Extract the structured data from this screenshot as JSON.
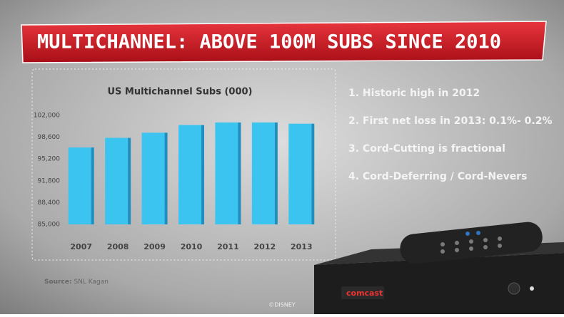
{
  "slide": {
    "heading": "MULTICHANNEL: ABOVE 100M SUBS SINCE 2010",
    "points": [
      "1.  Historic high in 2012",
      "2.  First net loss in 2013: 0.1%- 0.2%",
      "3.  Cord-Cutting is fractional",
      "4.  Cord-Deferring / Cord-Nevers"
    ],
    "source_label": "Source:",
    "source": "SNL Kagan",
    "footer": "©DISNEY",
    "brand": "comcast"
  },
  "chart_data": {
    "type": "bar",
    "title": "US Multichannel Subs (000)",
    "categories": [
      "2007",
      "2008",
      "2009",
      "2010",
      "2011",
      "2012",
      "2013"
    ],
    "values": [
      97000,
      98500,
      99300,
      100500,
      100900,
      100900,
      100700
    ],
    "color": "#3cc4f0",
    "ylim": [
      85000,
      102000
    ],
    "yticks": [
      {
        "value": 85000,
        "label": "85,000"
      },
      {
        "value": 88400,
        "label": "88,400"
      },
      {
        "value": 91800,
        "label": "91,800"
      },
      {
        "value": 95200,
        "label": "95,200"
      },
      {
        "value": 98600,
        "label": "98,600"
      },
      {
        "value": 102000,
        "label": "102,000"
      }
    ]
  }
}
